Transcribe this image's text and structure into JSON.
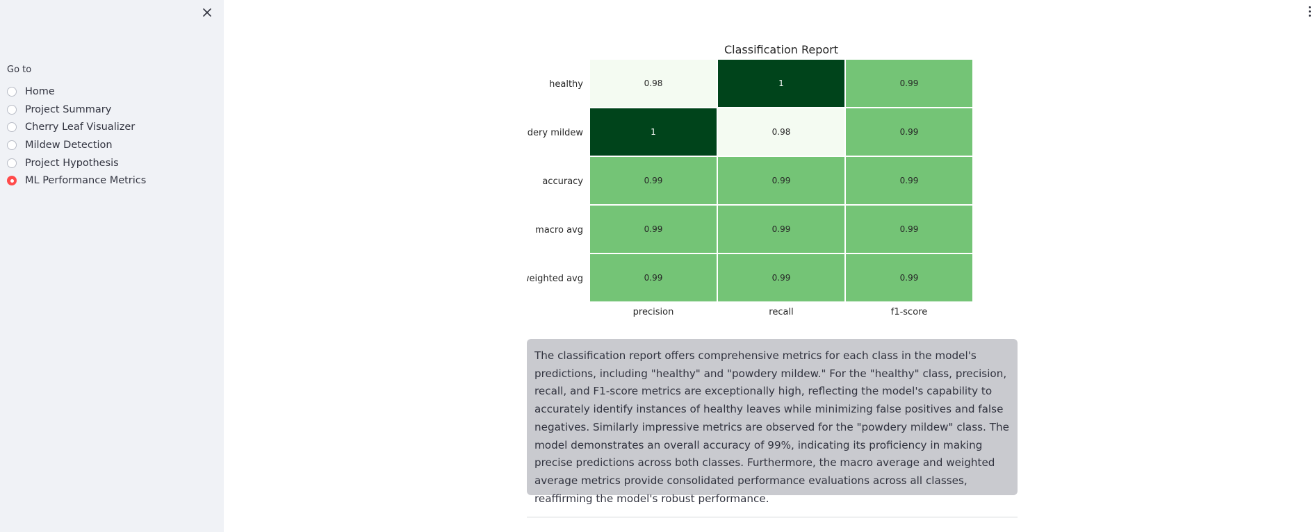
{
  "sidebar": {
    "close_icon": "close-icon",
    "goto_label": "Go to",
    "items": [
      {
        "label": "Home",
        "selected": false
      },
      {
        "label": "Project Summary",
        "selected": false
      },
      {
        "label": "Cherry Leaf Visualizer",
        "selected": false
      },
      {
        "label": "Mildew Detection",
        "selected": false
      },
      {
        "label": "Project Hypothesis",
        "selected": false
      },
      {
        "label": "ML Performance Metrics",
        "selected": true
      }
    ]
  },
  "header": {
    "menu_icon": "kebab-menu-icon"
  },
  "main": {
    "info_text": "The classification report offers comprehensive metrics for each class in the model's predictions, including \"healthy\" and \"powdery mildew.\" For the \"healthy\" class, precision, recall, and F1-score metrics are exceptionally high, reflecting the model's capability to accurately identify instances of healthy leaves while minimizing false positives and false negatives. Similarly impressive metrics are observed for the \"powdery mildew\" class. The model demonstrates an overall accuracy of 99%, indicating its proficiency in making precise predictions across both classes. Furthermore, the macro average and weighted average metrics provide consolidated performance evaluations across all classes, reaffirming the model's robust performance."
  },
  "colors": {
    "accent": "#ff4b4b",
    "info_box_bg": "#c9cacf",
    "sidebar_bg": "#f0f2f6"
  },
  "chart_data": {
    "type": "heatmap",
    "title": "Classification Report",
    "rows": [
      "healthy",
      "powdery mildew",
      "accuracy",
      "macro avg",
      "weighted avg"
    ],
    "columns": [
      "precision",
      "recall",
      "f1-score"
    ],
    "values": [
      [
        0.98,
        1,
        0.99
      ],
      [
        1,
        0.98,
        0.99
      ],
      [
        0.99,
        0.99,
        0.99
      ],
      [
        0.99,
        0.99,
        0.99
      ],
      [
        0.99,
        0.99,
        0.99
      ]
    ],
    "labels": [
      [
        "0.98",
        "1",
        "0.99"
      ],
      [
        "1",
        "0.98",
        "0.99"
      ],
      [
        "0.99",
        "0.99",
        "0.99"
      ],
      [
        "0.99",
        "0.99",
        "0.99"
      ],
      [
        "0.99",
        "0.99",
        "0.99"
      ]
    ],
    "colormap": "Greens",
    "vmin": 0.98,
    "vmax": 1,
    "cell_colors": {
      "low": "#f4fbf2",
      "mid": "#74c476",
      "high": "#00441b"
    }
  }
}
